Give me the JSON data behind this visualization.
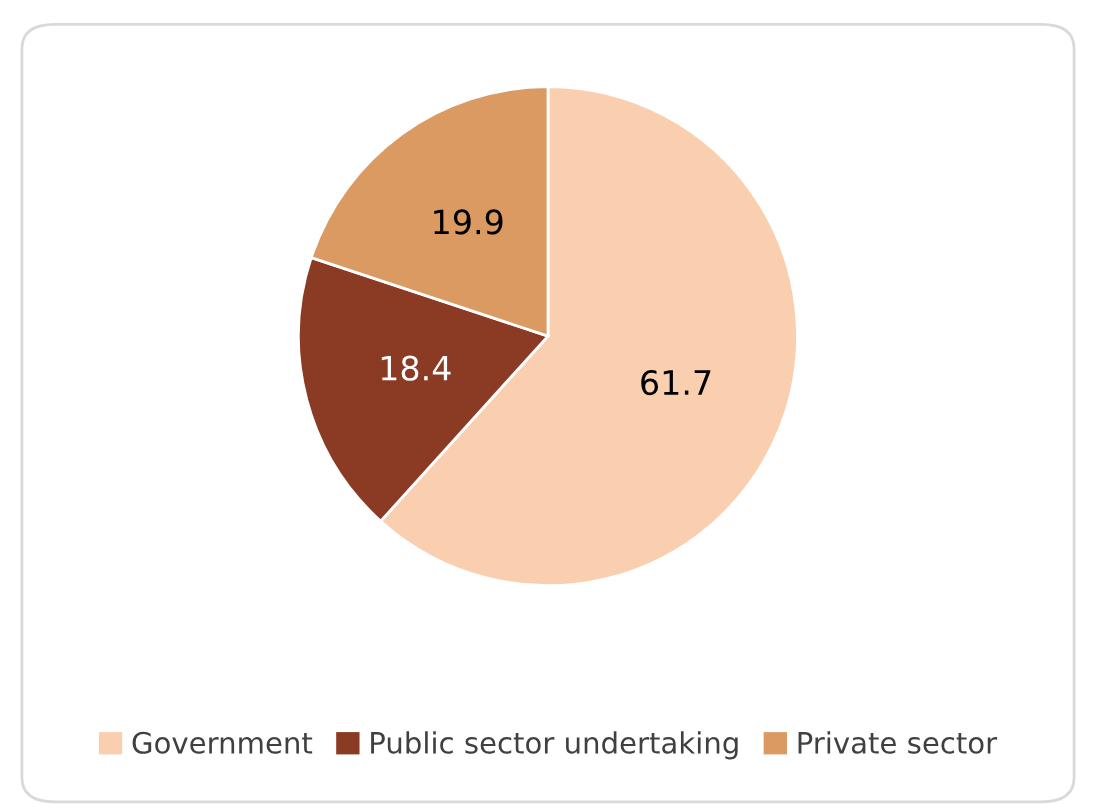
{
  "chart_data": {
    "type": "pie",
    "categories": [
      "Government",
      "Public sector undertaking",
      "Private sector"
    ],
    "values": [
      61.7,
      18.4,
      19.9
    ],
    "colors": [
      "#f9cfb0",
      "#8b3a23",
      "#da9a62"
    ],
    "data_labels": true,
    "legend": "bottom"
  }
}
